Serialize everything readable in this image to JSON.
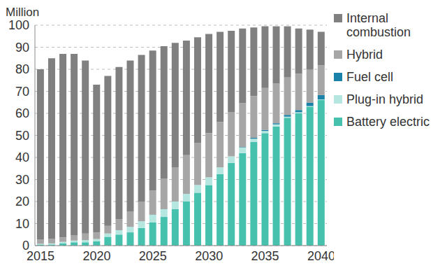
{
  "chart_data": {
    "type": "bar",
    "y_label": "Million",
    "stacked": true,
    "grid": true,
    "legend": "right",
    "categories": [
      "2015",
      null,
      null,
      null,
      null,
      "2020",
      null,
      null,
      null,
      null,
      "2025",
      null,
      null,
      null,
      null,
      "2030",
      null,
      null,
      null,
      null,
      "2035",
      null,
      null,
      null,
      null,
      "2040"
    ],
    "ylim": [
      0,
      100
    ],
    "yticks": [
      0,
      10,
      20,
      30,
      40,
      50,
      60,
      70,
      80,
      90,
      100
    ],
    "series": [
      {
        "name": "Battery electric",
        "color": "#45c1ae",
        "values": [
          0.5,
          0.5,
          1,
          1.5,
          1.5,
          2,
          4,
          5,
          6,
          8,
          10.5,
          13,
          16.5,
          20,
          24,
          27.5,
          32.5,
          37.5,
          42,
          47,
          51,
          54,
          58,
          60,
          63,
          66
        ]
      },
      {
        "name": "Plug-in hybrid",
        "color": "#b5e6df",
        "values": [
          0.3,
          0.5,
          0.7,
          0.8,
          1,
          1,
          1.5,
          2,
          2.5,
          3,
          3.5,
          3.5,
          3.5,
          3.5,
          3.5,
          3.5,
          3,
          3,
          2.5,
          1.5,
          1,
          1,
          0.5,
          0.5,
          0.3,
          0.3
        ]
      },
      {
        "name": "Fuel cell",
        "color": "#1a82a8",
        "values": [
          0,
          0,
          0,
          0,
          0,
          0,
          0,
          0,
          0,
          0,
          0,
          0,
          0,
          0,
          0,
          0,
          0,
          0,
          0.2,
          0.4,
          0.5,
          0.5,
          0.8,
          1,
          1.5,
          2
        ]
      },
      {
        "name": "Hybrid",
        "color": "#a6a6a6",
        "values": [
          2,
          2,
          2,
          2.5,
          3,
          3,
          3.5,
          5,
          7,
          9,
          11,
          14,
          15.5,
          17.5,
          19,
          20,
          20.5,
          20,
          20,
          19,
          19,
          18,
          17,
          16.5,
          15,
          13.5
        ]
      },
      {
        "name": "Internal combustion",
        "color": "#808080",
        "values": [
          77.2,
          82,
          83.3,
          82.2,
          78.5,
          67,
          68,
          69,
          68.5,
          66.5,
          63.5,
          60,
          56.5,
          52,
          48,
          45,
          41,
          37,
          33.8,
          31.1,
          28,
          26,
          23.2,
          20.5,
          18.2,
          15.2
        ]
      }
    ]
  }
}
